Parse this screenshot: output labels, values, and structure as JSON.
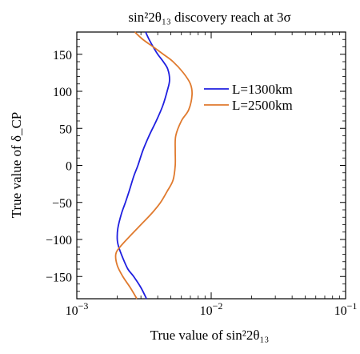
{
  "chart_data": {
    "type": "line",
    "title": "sin²2θ₁₃ discovery reach at 3σ",
    "xlabel": "True value of sin²2θ₁₃",
    "ylabel": "True value of δ_CP",
    "x_scale": "log",
    "xlim": [
      0.001,
      0.1
    ],
    "ylim": [
      -180,
      180
    ],
    "x_ticks": [
      {
        "value": 0.001,
        "base": "10",
        "exp": "−3"
      },
      {
        "value": 0.01,
        "base": "10",
        "exp": "−2"
      },
      {
        "value": 0.1,
        "base": "10",
        "exp": "−1"
      }
    ],
    "y_ticks": [
      {
        "value": 150,
        "label": "150"
      },
      {
        "value": 100,
        "label": "100"
      },
      {
        "value": 50,
        "label": "50"
      },
      {
        "value": 0,
        "label": "0"
      },
      {
        "value": -50,
        "label": "−50"
      },
      {
        "value": -100,
        "label": "−100"
      },
      {
        "value": -150,
        "label": "−150"
      }
    ],
    "grid": false,
    "legend_position": "top-right",
    "series": [
      {
        "name": "L=1300km",
        "color": "#1f1fe0",
        "points": [
          [
            0.0033,
            -180
          ],
          [
            0.003,
            -165
          ],
          [
            0.00265,
            -150
          ],
          [
            0.0024,
            -140
          ],
          [
            0.0022,
            -125
          ],
          [
            0.00205,
            -110
          ],
          [
            0.002,
            -100
          ],
          [
            0.00202,
            -85
          ],
          [
            0.00215,
            -65
          ],
          [
            0.0023,
            -50
          ],
          [
            0.00245,
            -35
          ],
          [
            0.00265,
            -15
          ],
          [
            0.00285,
            0
          ],
          [
            0.0031,
            20
          ],
          [
            0.00345,
            40
          ],
          [
            0.0039,
            60
          ],
          [
            0.00435,
            80
          ],
          [
            0.0047,
            100
          ],
          [
            0.0049,
            115
          ],
          [
            0.00475,
            130
          ],
          [
            0.0044,
            140
          ],
          [
            0.004,
            150
          ],
          [
            0.0037,
            160
          ],
          [
            0.00345,
            170
          ],
          [
            0.00325,
            180
          ]
        ]
      },
      {
        "name": "L=2500km",
        "color": "#e07a2e",
        "points": [
          [
            0.0028,
            -180
          ],
          [
            0.0025,
            -165
          ],
          [
            0.0022,
            -150
          ],
          [
            0.002,
            -135
          ],
          [
            0.00195,
            -120
          ],
          [
            0.0021,
            -110
          ],
          [
            0.0025,
            -95
          ],
          [
            0.003,
            -80
          ],
          [
            0.0036,
            -65
          ],
          [
            0.0042,
            -50
          ],
          [
            0.0047,
            -35
          ],
          [
            0.0052,
            -20
          ],
          [
            0.0054,
            0
          ],
          [
            0.0054,
            20
          ],
          [
            0.00545,
            40
          ],
          [
            0.006,
            60
          ],
          [
            0.0068,
            75
          ],
          [
            0.0072,
            95
          ],
          [
            0.007,
            110
          ],
          [
            0.0062,
            125
          ],
          [
            0.0052,
            140
          ],
          [
            0.0044,
            150
          ],
          [
            0.0037,
            160
          ],
          [
            0.0031,
            170
          ],
          [
            0.0027,
            180
          ]
        ]
      }
    ]
  }
}
